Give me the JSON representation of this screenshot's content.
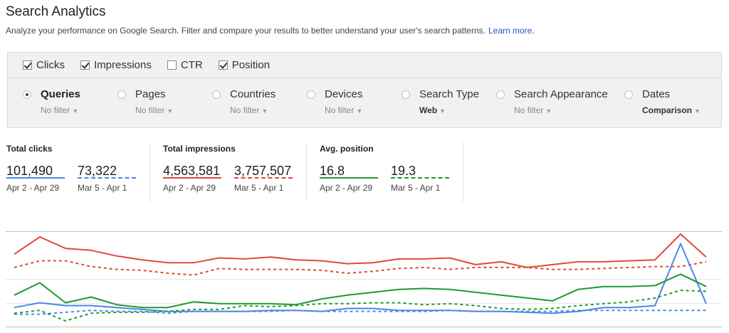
{
  "header": {
    "title": "Search Analytics",
    "description": "Analyze your performance on Google Search. Filter and compare your results to better understand your user's search patterns.",
    "learn_more": "Learn more."
  },
  "metrics": [
    {
      "label": "Clicks",
      "checked": true
    },
    {
      "label": "Impressions",
      "checked": true
    },
    {
      "label": "CTR",
      "checked": false
    },
    {
      "label": "Position",
      "checked": true
    }
  ],
  "dimensions": [
    {
      "label": "Queries",
      "filter": "No filter",
      "selected": true
    },
    {
      "label": "Pages",
      "filter": "No filter",
      "selected": false
    },
    {
      "label": "Countries",
      "filter": "No filter",
      "selected": false
    },
    {
      "label": "Devices",
      "filter": "No filter",
      "selected": false
    },
    {
      "label": "Search Type",
      "filter": "Web",
      "selected": false
    },
    {
      "label": "Search Appearance",
      "filter": "No filter",
      "selected": false
    },
    {
      "label": "Dates",
      "filter": "Comparison",
      "selected": false
    }
  ],
  "stats": {
    "clicks": {
      "title": "Total clicks",
      "current": "101,490",
      "current_range": "Apr 2 - Apr 29",
      "previous": "73,322",
      "previous_range": "Mar 5 - Apr 1",
      "color": "#4a86e8"
    },
    "impressions": {
      "title": "Total impressions",
      "current": "4,563,581",
      "current_range": "Apr 2 - Apr 29",
      "previous": "3,757,507",
      "previous_range": "Mar 5 - Apr 1",
      "color": "#dd4b39"
    },
    "position": {
      "title": "Avg. position",
      "current": "16.8",
      "current_range": "Apr 2 - Apr 29",
      "previous": "19.3",
      "previous_range": "Mar 5 - Apr 1",
      "color": "#1e9a2e"
    }
  },
  "chart_data": {
    "type": "line",
    "ylim": [
      0,
      10
    ],
    "grid": true,
    "series": [
      {
        "name": "Impressions Apr 2 - Apr 29",
        "color": "#dd4b39",
        "dashed": false,
        "values": [
          7.6,
          9.4,
          8.2,
          8.0,
          7.4,
          7.0,
          6.7,
          6.7,
          7.2,
          7.1,
          7.3,
          7.0,
          6.9,
          6.6,
          6.7,
          7.1,
          7.1,
          7.2,
          6.5,
          6.8,
          6.2,
          6.5,
          6.8,
          6.8,
          6.9,
          7.0,
          9.7,
          7.3
        ]
      },
      {
        "name": "Impressions Mar 5 - Apr 1",
        "color": "#dd4b39",
        "dashed": true,
        "values": [
          6.2,
          6.9,
          6.9,
          6.3,
          6.0,
          5.9,
          5.6,
          5.4,
          6.1,
          6.0,
          6.0,
          6.0,
          5.9,
          5.6,
          5.8,
          6.1,
          6.2,
          6.0,
          6.2,
          6.2,
          6.2,
          6.0,
          6.0,
          6.1,
          6.2,
          6.3,
          6.3,
          6.8
        ]
      },
      {
        "name": "Clicks Apr 2 - Apr 29",
        "color": "#4a86e8",
        "dashed": false,
        "values": [
          2.0,
          2.5,
          2.2,
          2.2,
          2.0,
          1.8,
          1.6,
          1.6,
          1.6,
          1.6,
          1.7,
          1.7,
          1.6,
          1.9,
          1.9,
          1.7,
          1.7,
          1.7,
          1.6,
          1.6,
          1.5,
          1.4,
          1.6,
          2.0,
          2.0,
          2.2,
          8.7,
          2.4
        ]
      },
      {
        "name": "Clicks Mar 5 - Apr 1",
        "color": "#4a86e8",
        "dashed": true,
        "values": [
          1.3,
          1.3,
          1.5,
          1.7,
          1.6,
          1.6,
          1.4,
          1.6,
          1.6,
          1.6,
          1.6,
          1.7,
          1.6,
          1.6,
          1.6,
          1.6,
          1.6,
          1.7,
          1.6,
          1.6,
          1.6,
          1.6,
          1.7,
          1.7,
          1.7,
          1.7,
          1.7,
          1.7
        ]
      },
      {
        "name": "Position Apr 2 - Apr 29",
        "color": "#1e9a2e",
        "dashed": false,
        "values": [
          3.3,
          4.6,
          2.5,
          3.1,
          2.3,
          2.0,
          2.0,
          2.6,
          2.4,
          2.4,
          2.4,
          2.3,
          2.9,
          3.3,
          3.6,
          3.9,
          4.0,
          3.9,
          3.6,
          3.3,
          3.0,
          2.7,
          3.9,
          4.2,
          4.2,
          4.3,
          5.5,
          4.2
        ]
      },
      {
        "name": "Position Mar 5 - Apr 1",
        "color": "#1e9a2e",
        "dashed": true,
        "values": [
          1.4,
          1.7,
          0.6,
          1.4,
          1.5,
          1.5,
          1.6,
          1.8,
          1.8,
          2.2,
          2.1,
          2.2,
          2.4,
          2.4,
          2.5,
          2.5,
          2.3,
          2.4,
          2.2,
          1.9,
          1.8,
          1.9,
          2.2,
          2.4,
          2.6,
          3.0,
          3.8,
          3.7
        ]
      }
    ]
  }
}
